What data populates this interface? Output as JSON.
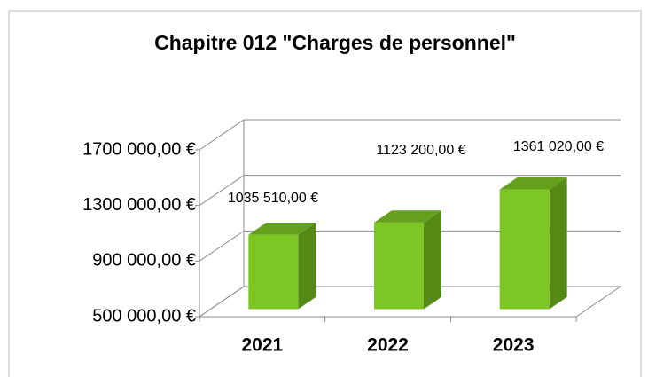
{
  "chart_data": {
    "type": "bar3d",
    "title": "Chapitre 012 \"Charges de personnel\"",
    "categories": [
      "2021",
      "2022",
      "2023"
    ],
    "values": [
      1035510,
      1123200,
      1361020
    ],
    "value_labels": [
      "1035 510,00 €",
      "1123 200,00 €",
      "1361 020,00 €"
    ],
    "color": "#7dc623",
    "ylim": [
      500000,
      1700000
    ],
    "yticks": [
      {
        "value": 500000,
        "label": "500 000,00 €"
      },
      {
        "value": 900000,
        "label": "900 000,00 €"
      },
      {
        "value": 1300000,
        "label": "1300 000,00 €"
      },
      {
        "value": 1700000,
        "label": "1700 000,00 €"
      }
    ],
    "grid": true
  }
}
